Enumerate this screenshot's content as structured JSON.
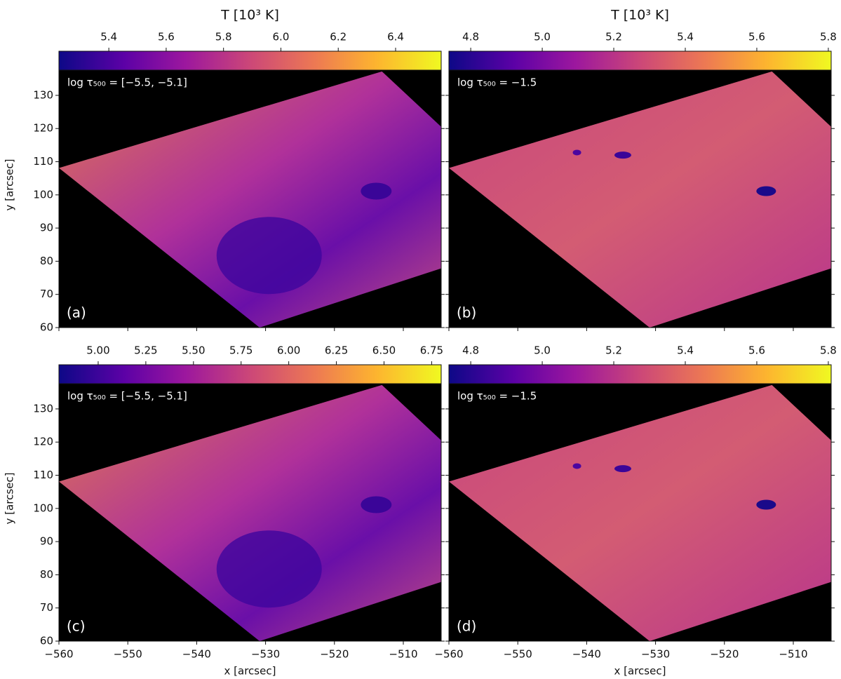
{
  "chart_data": [
    {
      "type": "heatmap",
      "colorbar_label": "T [10³ K]",
      "annotation": "log τ₅₀₀ = [−5.5, −5.1]",
      "panel_label": "(a)",
      "ylabel": "y [arcsec]",
      "xlim": [
        -560,
        -504.5
      ],
      "ylim": [
        60,
        137.6
      ],
      "xticks": [
        -560,
        -550,
        -540,
        -530,
        -520,
        -510
      ],
      "yticks": [
        60,
        70,
        80,
        90,
        100,
        110,
        120,
        130
      ],
      "clim": [
        5.226,
        6.559
      ],
      "cticks": [
        5.4,
        5.6,
        5.8,
        {
          "value": 6.0,
          "label": "6.0"
        },
        6.2,
        6.4
      ]
    },
    {
      "type": "heatmap",
      "colorbar_label": "T [10³ K]",
      "annotation": "log τ₅₀₀ = −1.5",
      "panel_label": "(b)",
      "xlim": [
        -560,
        -504.5
      ],
      "ylim": [
        60,
        137.6
      ],
      "xticks": [
        -560,
        -550,
        -540,
        -530,
        -520,
        -510
      ],
      "yticks": [
        60,
        70,
        80,
        90,
        100,
        110,
        120,
        130
      ],
      "clim": [
        4.739,
        5.808
      ],
      "cticks": [
        4.8,
        {
          "value": 5.0,
          "label": "5.0"
        },
        5.2,
        5.4,
        5.6,
        5.8
      ]
    },
    {
      "type": "heatmap",
      "annotation": "log τ₅₀₀ = [−5.5, −5.1]",
      "panel_label": "(c)",
      "xlabel": "x [arcsec]",
      "ylabel": "y [arcsec]",
      "xlim": [
        -560,
        -504.5
      ],
      "ylim": [
        60,
        137.6
      ],
      "xticks": [
        {
          "value": -560,
          "label": "−560"
        },
        {
          "value": -550,
          "label": "−550"
        },
        {
          "value": -540,
          "label": "−540"
        },
        {
          "value": -530,
          "label": "−530"
        },
        {
          "value": -520,
          "label": "−520"
        },
        {
          "value": -510,
          "label": "−510"
        }
      ],
      "yticks": [
        60,
        70,
        80,
        90,
        100,
        110,
        120,
        130
      ],
      "clim": [
        4.794,
        6.8
      ],
      "cticks": [
        {
          "value": 5.0,
          "label": "5.00"
        },
        5.25,
        {
          "value": 5.5,
          "label": "5.50"
        },
        5.75,
        {
          "value": 6.0,
          "label": "6.00"
        },
        6.25,
        {
          "value": 6.5,
          "label": "6.50"
        },
        6.75
      ]
    },
    {
      "type": "heatmap",
      "annotation": "log τ₅₀₀ = −1.5",
      "panel_label": "(d)",
      "xlabel": "x [arcsec]",
      "xlim": [
        -560,
        -504.5
      ],
      "ylim": [
        60,
        137.6
      ],
      "xticks": [
        {
          "value": -560,
          "label": "−560"
        },
        {
          "value": -550,
          "label": "−550"
        },
        {
          "value": -540,
          "label": "−540"
        },
        {
          "value": -530,
          "label": "−530"
        },
        {
          "value": -520,
          "label": "−520"
        },
        {
          "value": -510,
          "label": "−510"
        }
      ],
      "yticks": [
        60,
        70,
        80,
        90,
        100,
        110,
        120,
        130
      ],
      "clim": [
        4.739,
        5.808
      ],
      "cticks": [
        4.8,
        {
          "value": 5.0,
          "label": "5.0"
        },
        5.2,
        5.4,
        5.6,
        5.8
      ]
    }
  ]
}
